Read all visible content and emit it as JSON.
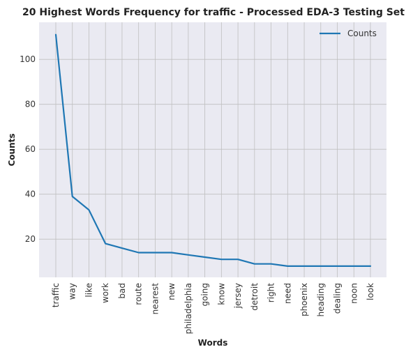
{
  "chart_data": {
    "type": "line",
    "title": "20 Highest Words Frequency for traffic - Processed EDA-3 Testing Set",
    "xlabel": "Words",
    "ylabel": "Counts",
    "categories": [
      "traffic",
      "way",
      "like",
      "work",
      "bad",
      "route",
      "nearest",
      "new",
      "philadelphia",
      "going",
      "know",
      "jersey",
      "detroit",
      "right",
      "need",
      "phoenix",
      "heading",
      "dealing",
      "noon",
      "look"
    ],
    "series": [
      {
        "name": "Counts",
        "color": "#1f77b4",
        "values": [
          111,
          39,
          33,
          18,
          16,
          14,
          14,
          14,
          13,
          12,
          11,
          11,
          9,
          9,
          8,
          8,
          8,
          8,
          8,
          8
        ]
      }
    ],
    "ylim": [
      3,
      116.5
    ],
    "yticks": [
      20,
      40,
      60,
      80,
      100
    ],
    "grid": true,
    "legend_position": "top-right",
    "colors": {
      "plot_background": "#eaeaf2",
      "grid": "#bfbfbf",
      "line": "#1f77b4"
    }
  }
}
